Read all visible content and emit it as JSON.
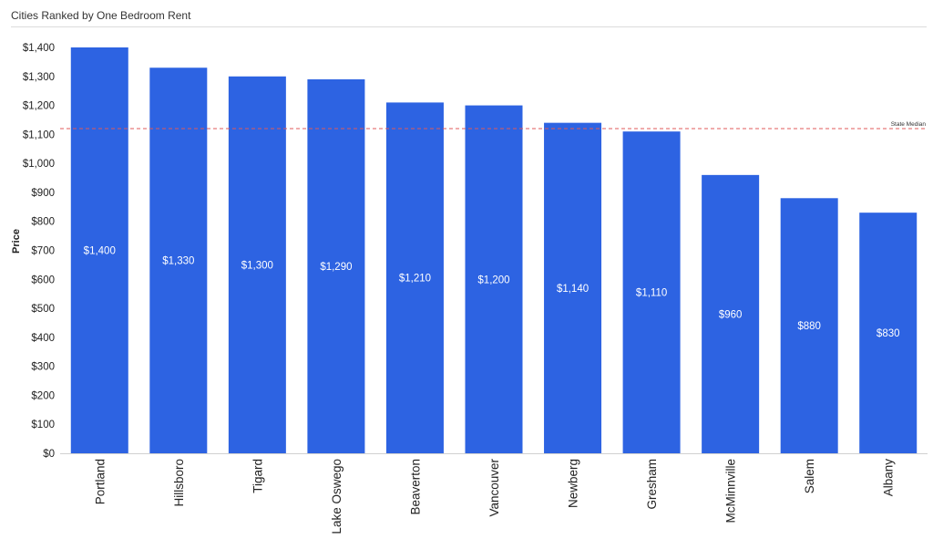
{
  "chart_data": {
    "type": "bar",
    "title": "Cities Ranked by One Bedroom Rent",
    "xlabel": "",
    "ylabel": "Price",
    "ylim": [
      0,
      1400
    ],
    "yticks": [
      0,
      100,
      200,
      300,
      400,
      500,
      600,
      700,
      800,
      900,
      1000,
      1100,
      1200,
      1300,
      1400
    ],
    "ytick_labels": [
      "$0",
      "$100",
      "$200",
      "$300",
      "$400",
      "$500",
      "$600",
      "$700",
      "$800",
      "$900",
      "$1,000",
      "$1,100",
      "$1,200",
      "$1,300",
      "$1,400"
    ],
    "categories": [
      "Portland",
      "Hillsboro",
      "Tigard",
      "Lake Oswego",
      "Beaverton",
      "Vancouver",
      "Newberg",
      "Gresham",
      "McMinnville",
      "Salem",
      "Albany"
    ],
    "values": [
      1400,
      1330,
      1300,
      1290,
      1210,
      1200,
      1140,
      1110,
      960,
      880,
      830
    ],
    "value_labels": [
      "$1,400",
      "$1,330",
      "$1,300",
      "$1,290",
      "$1,210",
      "$1,200",
      "$1,140",
      "$1,110",
      "$960",
      "$880",
      "$830"
    ],
    "bar_color": "#2d63e2",
    "reference_line": {
      "label": "State Median",
      "value": 1120,
      "color": "#e05a5a",
      "style": "dashed"
    },
    "grid": false,
    "legend": "none"
  }
}
